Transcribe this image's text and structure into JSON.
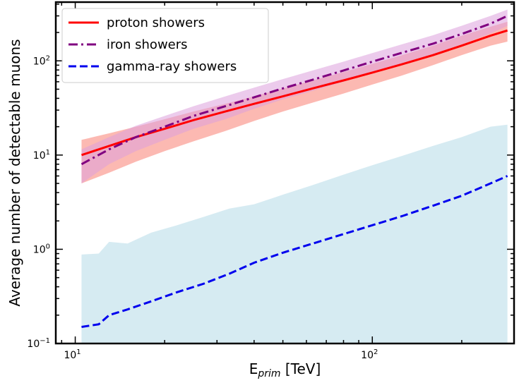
{
  "chart_data": {
    "type": "line",
    "scale": {
      "x": "log",
      "y": "log"
    },
    "xlim": [
      8.6,
      300
    ],
    "ylim": [
      0.1,
      420
    ],
    "xlabel": {
      "main": "E",
      "sub": "prim",
      "unit": " [TeV]"
    },
    "ylabel": "Average number of detectable muons",
    "x_ticks": [
      {
        "value": 10,
        "base": "10",
        "exp": "1"
      },
      {
        "value": 100,
        "base": "10",
        "exp": "2"
      }
    ],
    "y_ticks": [
      {
        "value": 0.1,
        "base": "10",
        "exp": "−1"
      },
      {
        "value": 1,
        "base": "10",
        "exp": "0"
      },
      {
        "value": 10,
        "base": "10",
        "exp": "1"
      },
      {
        "value": 100,
        "base": "10",
        "exp": "2"
      }
    ],
    "grid": false,
    "legend_position": "top-left",
    "series": [
      {
        "name": "proton showers",
        "color": "#ff0000",
        "line_style": "solid",
        "band_color": "#fa8072",
        "x": [
          10.5,
          13,
          16,
          20,
          25,
          32,
          40,
          50,
          63,
          80,
          100,
          126,
          160,
          200,
          250,
          285
        ],
        "values": [
          10,
          12.5,
          15.5,
          19,
          23.5,
          29,
          35,
          42,
          51,
          62,
          75,
          92,
          115,
          145,
          185,
          210
        ],
        "band_low": [
          5,
          6.5,
          8.5,
          11,
          14,
          18,
          23,
          29,
          36,
          45,
          56,
          70,
          90,
          115,
          145,
          160
        ],
        "band_high": [
          14.5,
          17,
          20,
          24,
          29,
          35,
          42,
          51,
          62,
          76,
          93,
          115,
          145,
          185,
          230,
          260
        ]
      },
      {
        "name": "iron showers",
        "color": "#800080",
        "line_style": "dashdot",
        "band_color": "#dda0dd",
        "x": [
          10.5,
          13,
          16,
          20,
          25,
          32,
          40,
          50,
          63,
          80,
          100,
          126,
          160,
          200,
          250,
          285
        ],
        "values": [
          8,
          11.5,
          15.5,
          20,
          26,
          33,
          41,
          51,
          63,
          79,
          98,
          122,
          152,
          193,
          248,
          300
        ],
        "band_low": [
          5,
          8,
          11,
          14.5,
          19,
          24,
          31,
          39,
          48,
          60,
          75,
          94,
          118,
          150,
          195,
          235
        ],
        "band_high": [
          11.5,
          15.5,
          20.5,
          26,
          33,
          42,
          52,
          64,
          79,
          98,
          121,
          150,
          187,
          236,
          300,
          350
        ]
      },
      {
        "name": "gamma-ray showers",
        "color": "#0000ee",
        "line_style": "dashed",
        "band_color": "#add8e6",
        "x": [
          10.5,
          12,
          13,
          15,
          18,
          22,
          27,
          33,
          40,
          50,
          63,
          80,
          100,
          126,
          160,
          200,
          250,
          285
        ],
        "values": [
          0.15,
          0.16,
          0.2,
          0.23,
          0.28,
          0.35,
          0.43,
          0.55,
          0.72,
          0.92,
          1.15,
          1.45,
          1.8,
          2.25,
          2.9,
          3.7,
          5,
          6
        ],
        "band_low": [
          0.1,
          0.1,
          0.1,
          0.1,
          0.1,
          0.1,
          0.1,
          0.1,
          0.1,
          0.1,
          0.1,
          0.1,
          0.1,
          0.1,
          0.1,
          0.1,
          0.1,
          0.1
        ],
        "band_high": [
          0.88,
          0.9,
          1.2,
          1.15,
          1.5,
          1.8,
          2.2,
          2.7,
          3,
          3.8,
          4.8,
          6.2,
          7.8,
          9.8,
          12.5,
          15.5,
          20,
          21
        ]
      }
    ]
  }
}
